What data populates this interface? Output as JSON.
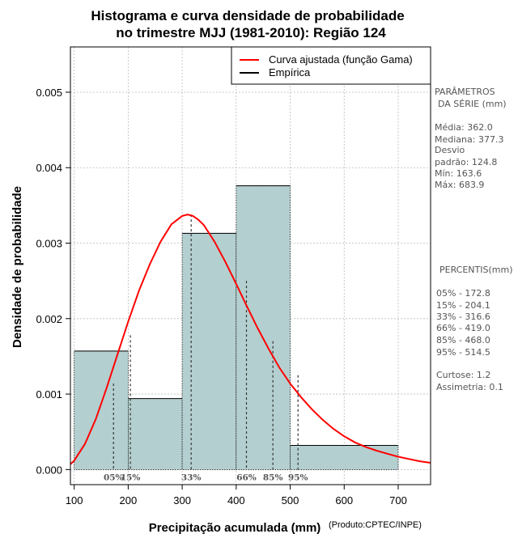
{
  "chart_data": {
    "type": "bar",
    "title": [
      "Histograma e curva densidade de probabilidade",
      "no trimestre MJJ (1981-2010): Região 124"
    ],
    "xlabel": "Precipitação acumulada (mm)",
    "ylabel": "Densidade de probabilidade",
    "credit": "(Produto:CPTEC/INPE)",
    "xlim": [
      93,
      760
    ],
    "ylim": [
      -0.0002,
      0.0056
    ],
    "xticks": [
      100,
      200,
      300,
      400,
      500,
      600,
      700
    ],
    "yticks": [
      0.0,
      0.001,
      0.002,
      0.003,
      0.004,
      0.005
    ],
    "ytick_labels": [
      "0.000",
      "0.001",
      "0.002",
      "0.003",
      "0.004",
      "0.005"
    ],
    "grid": true,
    "bins": [
      {
        "start": 100,
        "end": 200,
        "density": 0.00157
      },
      {
        "start": 200,
        "end": 300,
        "density": 0.00094
      },
      {
        "start": 300,
        "end": 400,
        "density": 0.00313
      },
      {
        "start": 400,
        "end": 500,
        "density": 0.00376
      },
      {
        "start": 500,
        "end": 700,
        "density": 0.00032
      }
    ],
    "fitted_curve": {
      "name": "Curva ajustada (função Gama)",
      "color": "#ff0000",
      "x": [
        93,
        100,
        120,
        140,
        160,
        180,
        200,
        220,
        240,
        260,
        280,
        300,
        310,
        320,
        330,
        340,
        360,
        380,
        400,
        420,
        440,
        460,
        480,
        500,
        520,
        540,
        560,
        580,
        600,
        620,
        640,
        660,
        680,
        700,
        720,
        740,
        760
      ],
      "y": [
        7e-05,
        0.00012,
        0.00034,
        0.00067,
        0.00108,
        0.00152,
        0.00196,
        0.00237,
        0.00272,
        0.00302,
        0.00325,
        0.00336,
        0.00338,
        0.00336,
        0.00331,
        0.00324,
        0.00302,
        0.00275,
        0.00246,
        0.00216,
        0.00187,
        0.0016,
        0.00135,
        0.00114,
        0.00096,
        0.0008,
        0.00066,
        0.00054,
        0.00044,
        0.00036,
        0.0003,
        0.00025,
        0.00021,
        0.00017,
        0.00014,
        0.00011,
        9e-05
      ]
    },
    "empirical": {
      "name": "Empírica",
      "color": "#000000"
    },
    "bar_color": "#b4cfcf",
    "percentile_markers": [
      {
        "label": "05%",
        "value": 172.8,
        "density": 0.00114
      },
      {
        "label": "15%",
        "value": 204.1,
        "density": 0.00178
      },
      {
        "label": "33%",
        "value": 316.6,
        "density": 0.00338
      },
      {
        "label": "66%",
        "value": 419.0,
        "density": 0.0025
      },
      {
        "label": "85%",
        "value": 468.0,
        "density": 0.0017
      },
      {
        "label": "95%",
        "value": 514.5,
        "density": 0.00125
      }
    ]
  },
  "side_panel": {
    "params_title": [
      "PARÂMETROS",
      "DA SÉRIE (mm)"
    ],
    "params": [
      "Média:  362.0",
      "Mediana:  377.3",
      "Desvio",
      "padrão:  124.8",
      "Mín:  163.6",
      "Máx:  683.9"
    ],
    "percentis_title": "PERCENTIS(mm)",
    "percentis": [
      "05% -  172.8",
      "15% -  204.1",
      "33% -  316.6",
      "66% -  419.0",
      "85% -  468.0",
      "95% -  514.5"
    ],
    "stats": [
      "Curtose:  1.2",
      "Assimetria:  0.1"
    ]
  }
}
